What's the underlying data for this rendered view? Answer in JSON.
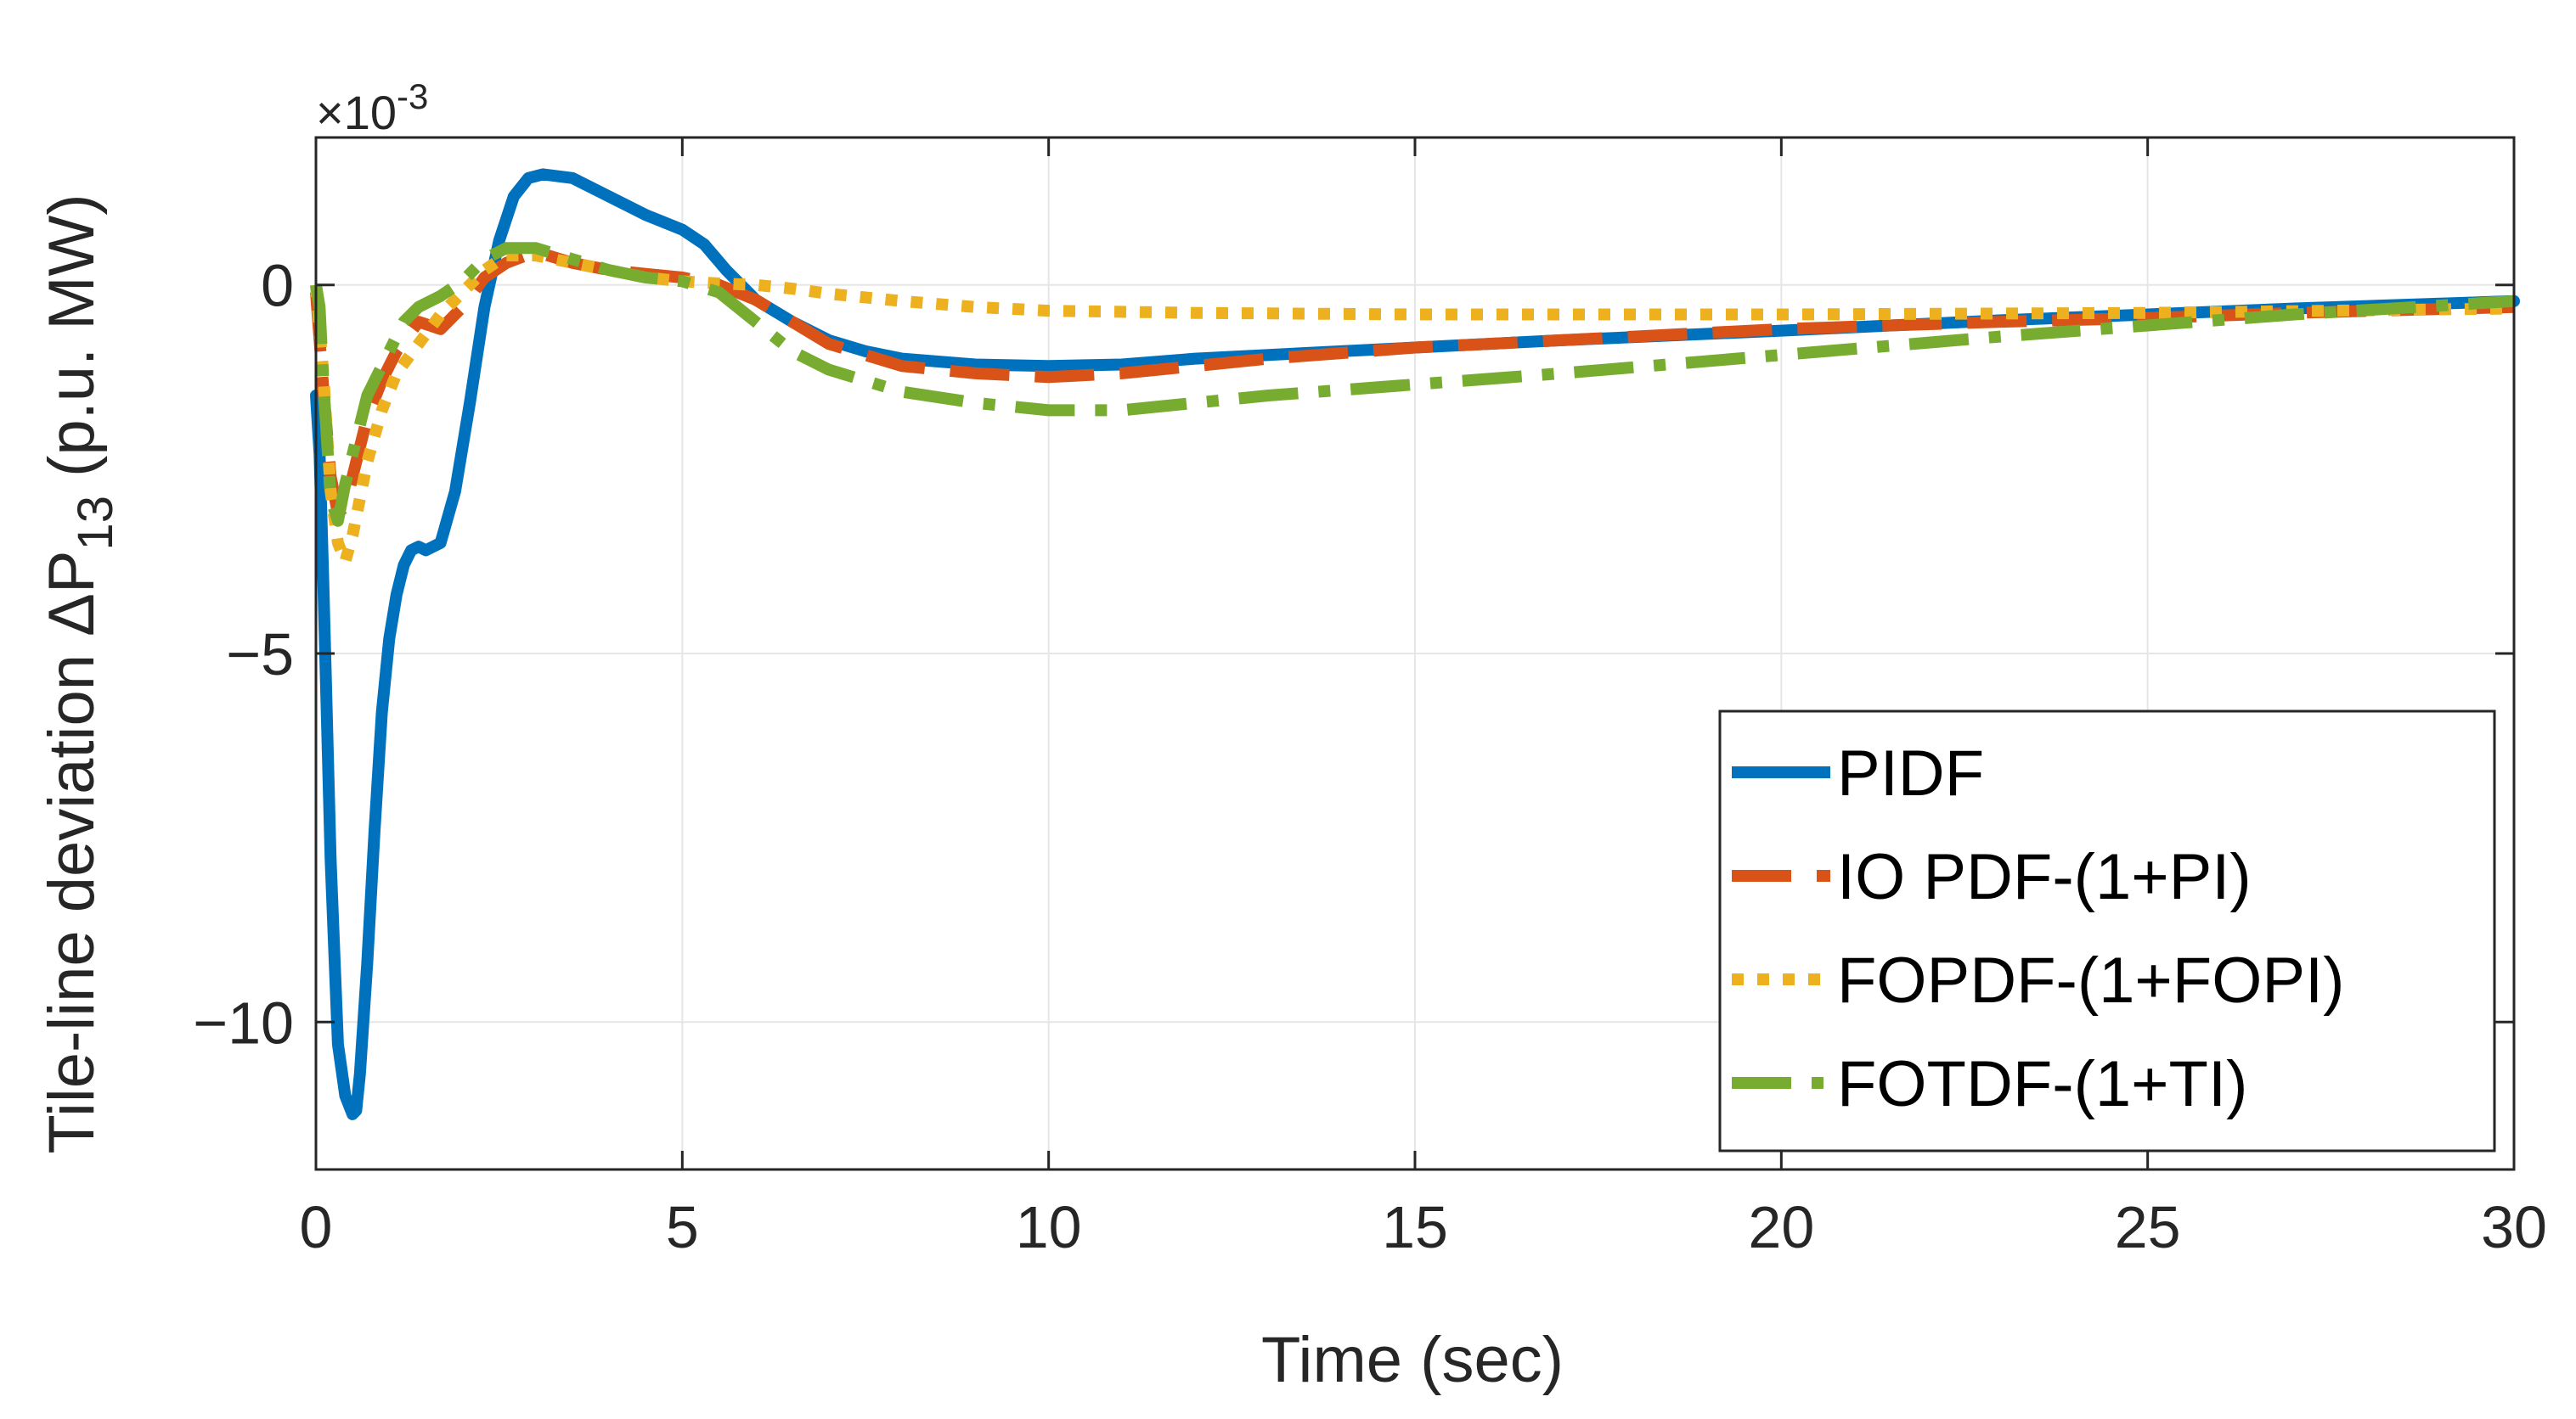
{
  "chart_data": {
    "type": "line",
    "title": "",
    "xlabel": "Time (sec)",
    "ylabel": {
      "main": "Tile-line deviation ΔP",
      "subscript": "13",
      "unit": "(p.u. MW)"
    },
    "y_multiplier": {
      "prefix": "×10",
      "exponent": "-3"
    },
    "xlim": [
      0,
      30
    ],
    "ylim": [
      -12,
      2
    ],
    "xticks": [
      0,
      5,
      10,
      15,
      20,
      25,
      30
    ],
    "xtick_labels": [
      "0",
      "5",
      "10",
      "15",
      "20",
      "25",
      "30"
    ],
    "yticks": [
      0,
      -5,
      -10
    ],
    "ytick_labels": [
      "0",
      "−5",
      "−10"
    ],
    "grid": true,
    "legend_position": "bottom-right",
    "series": [
      {
        "name": "PIDF",
        "color": "#0072BD",
        "style": "solid",
        "x": [
          0,
          0.05,
          0.1,
          0.2,
          0.3,
          0.4,
          0.5,
          0.55,
          0.6,
          0.7,
          0.8,
          0.9,
          1.0,
          1.1,
          1.2,
          1.3,
          1.4,
          1.5,
          1.7,
          1.9,
          2.1,
          2.3,
          2.5,
          2.7,
          2.9,
          3.1,
          3.5,
          4.0,
          4.5,
          5.0,
          5.3,
          5.6,
          6.0,
          6.5,
          7.0,
          7.5,
          8.0,
          9.0,
          10.0,
          11.0,
          12.0,
          13.0,
          15.0,
          17.0,
          20.0,
          23.0,
          25.0,
          27.0,
          30.0
        ],
        "values": [
          -1.5,
          -2.3,
          -4.0,
          -7.8,
          -10.3,
          -11.0,
          -11.25,
          -11.2,
          -10.7,
          -9.2,
          -7.4,
          -5.8,
          -4.8,
          -4.2,
          -3.8,
          -3.6,
          -3.55,
          -3.6,
          -3.5,
          -2.8,
          -1.6,
          -0.3,
          0.6,
          1.2,
          1.45,
          1.5,
          1.45,
          1.2,
          0.95,
          0.75,
          0.55,
          0.2,
          -0.2,
          -0.5,
          -0.75,
          -0.9,
          -1.0,
          -1.08,
          -1.1,
          -1.08,
          -1.0,
          -0.95,
          -0.85,
          -0.75,
          -0.62,
          -0.48,
          -0.4,
          -0.32,
          -0.22
        ]
      },
      {
        "name": "IO PDF-(1+PI)",
        "color": "#D95319",
        "style": "dashed",
        "x": [
          0,
          0.1,
          0.2,
          0.3,
          0.4,
          0.5,
          0.7,
          0.9,
          1.1,
          1.4,
          1.7,
          2.0,
          2.3,
          2.6,
          3.0,
          3.5,
          4.0,
          4.5,
          5.0,
          5.5,
          6.0,
          6.5,
          7.0,
          8.0,
          9.0,
          10.0,
          11.0,
          12.0,
          13.0,
          15.0,
          17.0,
          20.0,
          23.0,
          25.0,
          27.0,
          30.0
        ],
        "values": [
          -0.1,
          -1.4,
          -2.6,
          -3.1,
          -3.0,
          -2.6,
          -1.8,
          -1.3,
          -0.9,
          -0.5,
          -0.6,
          -0.3,
          0.1,
          0.3,
          0.45,
          0.3,
          0.2,
          0.15,
          0.1,
          0.0,
          -0.2,
          -0.5,
          -0.8,
          -1.1,
          -1.2,
          -1.25,
          -1.2,
          -1.1,
          -1.0,
          -0.85,
          -0.75,
          -0.6,
          -0.5,
          -0.45,
          -0.38,
          -0.3
        ]
      },
      {
        "name": "FOPDF-(1+FOPI)",
        "color": "#EDB120",
        "style": "dotted",
        "x": [
          0,
          0.1,
          0.2,
          0.3,
          0.4,
          0.5,
          0.7,
          0.9,
          1.1,
          1.4,
          1.7,
          2.0,
          2.3,
          2.6,
          3.0,
          3.5,
          4.0,
          4.5,
          5.0,
          5.5,
          6.0,
          6.5,
          7.0,
          8.0,
          9.0,
          10.0,
          12.0,
          15.0,
          20.0,
          25.0,
          30.0
        ],
        "values": [
          0,
          -1.2,
          -2.8,
          -3.5,
          -3.75,
          -3.4,
          -2.4,
          -1.7,
          -1.2,
          -0.8,
          -0.4,
          -0.1,
          0.2,
          0.4,
          0.4,
          0.3,
          0.2,
          0.1,
          0.05,
          0.02,
          0.0,
          -0.05,
          -0.12,
          -0.22,
          -0.3,
          -0.35,
          -0.38,
          -0.4,
          -0.4,
          -0.38,
          -0.32
        ]
      },
      {
        "name": "FOTDF-(1+TI)",
        "color": "#77AC30",
        "style": "dashdot",
        "x": [
          0,
          0.05,
          0.1,
          0.2,
          0.3,
          0.4,
          0.5,
          0.6,
          0.7,
          0.8,
          1.0,
          1.2,
          1.4,
          1.7,
          2.0,
          2.3,
          2.6,
          3.0,
          3.5,
          4.0,
          4.5,
          5.0,
          5.5,
          6.0,
          6.5,
          7.0,
          8.0,
          9.0,
          10.0,
          11.0,
          12.0,
          13.0,
          15.0,
          17.0,
          20.0,
          23.0,
          25.0,
          27.0,
          30.0
        ],
        "values": [
          0,
          -0.3,
          -1.3,
          -2.9,
          -3.2,
          -2.7,
          -2.3,
          -1.9,
          -1.5,
          -1.3,
          -0.9,
          -0.5,
          -0.3,
          -0.15,
          0.05,
          0.35,
          0.5,
          0.5,
          0.35,
          0.2,
          0.1,
          0.05,
          -0.1,
          -0.5,
          -0.9,
          -1.15,
          -1.45,
          -1.6,
          -1.7,
          -1.7,
          -1.6,
          -1.5,
          -1.35,
          -1.2,
          -0.95,
          -0.7,
          -0.55,
          -0.4,
          -0.22
        ]
      }
    ]
  }
}
